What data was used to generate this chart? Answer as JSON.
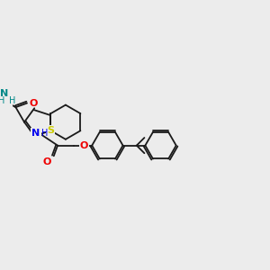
{
  "bg": "#ececec",
  "bc": "#1a1a1a",
  "S_c": "#cccc00",
  "N_c": "#0000ee",
  "O_c": "#ee0000",
  "NH2_c": "#008888",
  "lw": 1.3,
  "fig_w": 3.0,
  "fig_h": 3.0,
  "xlim": [
    0,
    300
  ],
  "ylim": [
    0,
    300
  ],
  "BL": 20
}
